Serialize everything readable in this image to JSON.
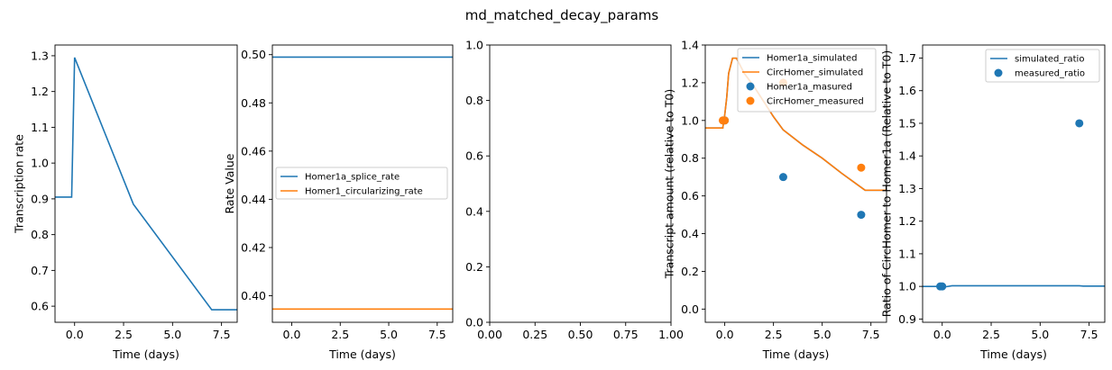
{
  "figure": {
    "title": "md_matched_decay_params"
  },
  "colors": {
    "blue": "#1f77b4",
    "orange": "#ff7f0e",
    "axis": "#000000",
    "legend_border": "#cccccc"
  },
  "chart_data": [
    {
      "type": "line",
      "xlabel": "Time (days)",
      "ylabel": "Transcription rate",
      "xlim": [
        -1.0,
        8.3
      ],
      "ylim": [
        0.555,
        1.33
      ],
      "xticks": [
        0.0,
        2.5,
        5.0,
        7.5
      ],
      "xtick_labels": [
        "0.0",
        "2.5",
        "5.0",
        "7.5"
      ],
      "yticks": [
        0.6,
        0.7,
        0.8,
        0.9,
        1.0,
        1.1,
        1.2,
        1.3
      ],
      "ytick_labels": [
        "0.6",
        "0.7",
        "0.8",
        "0.9",
        "1.0",
        "1.1",
        "1.2",
        "1.3"
      ],
      "legend": null,
      "series": [
        {
          "color": "#1f77b4",
          "kind": "line",
          "x": [
            -1.0,
            -0.15,
            -0.15,
            0.0,
            3.0,
            7.0,
            8.3
          ],
          "y": [
            0.905,
            0.905,
            0.905,
            1.295,
            0.885,
            0.59,
            0.59
          ]
        }
      ]
    },
    {
      "type": "line",
      "xlabel": "Time (days)",
      "ylabel": "Rate Value",
      "xlim": [
        -1.0,
        8.3
      ],
      "ylim": [
        0.389,
        0.504
      ],
      "xticks": [
        0.0,
        2.5,
        5.0,
        7.5
      ],
      "xtick_labels": [
        "0.0",
        "2.5",
        "5.0",
        "7.5"
      ],
      "yticks": [
        0.4,
        0.42,
        0.44,
        0.46,
        0.48,
        0.5
      ],
      "ytick_labels": [
        "0.40",
        "0.42",
        "0.44",
        "0.46",
        "0.48",
        "0.50"
      ],
      "legend": "center",
      "series": [
        {
          "name": "Homer1a_splice_rate",
          "color": "#1f77b4",
          "kind": "line",
          "x": [
            -1.0,
            8.3
          ],
          "y": [
            0.499,
            0.499
          ]
        },
        {
          "name": "Homer1_circularizing_rate",
          "color": "#ff7f0e",
          "kind": "line",
          "x": [
            -1.0,
            8.3
          ],
          "y": [
            0.3945,
            0.3945
          ]
        }
      ]
    },
    {
      "type": "line",
      "xlabel": "",
      "ylabel": "",
      "xlim": [
        0.0,
        1.0
      ],
      "ylim": [
        0.0,
        1.0
      ],
      "xticks": [
        0.0,
        0.25,
        0.5,
        0.75,
        1.0
      ],
      "xtick_labels": [
        "0.00",
        "0.25",
        "0.50",
        "0.75",
        "1.00"
      ],
      "yticks": [
        0.0,
        0.2,
        0.4,
        0.6,
        0.8,
        1.0
      ],
      "ytick_labels": [
        "0.0",
        "0.2",
        "0.4",
        "0.6",
        "0.8",
        "1.0"
      ],
      "legend": null,
      "series": []
    },
    {
      "type": "line",
      "xlabel": "Time (days)",
      "ylabel": "Transcript amount (relative to T0)",
      "xlim": [
        -1.0,
        8.3
      ],
      "ylim": [
        -0.07,
        1.4
      ],
      "xticks": [
        0.0,
        2.5,
        5.0,
        7.5
      ],
      "xtick_labels": [
        "0.0",
        "2.5",
        "5.0",
        "7.5"
      ],
      "yticks": [
        0.0,
        0.2,
        0.4,
        0.6,
        0.8,
        1.0,
        1.2,
        1.4
      ],
      "ytick_labels": [
        "0.0",
        "0.2",
        "0.4",
        "0.6",
        "0.8",
        "1.0",
        "1.2",
        "1.4"
      ],
      "legend": "top-right",
      "series": [
        {
          "name": "Homer1a_simulated",
          "color": "#1f77b4",
          "kind": "line",
          "x": [
            -1.0,
            -0.1,
            -0.05,
            0.0,
            0.1,
            0.2,
            0.4,
            0.6,
            0.8,
            1.0,
            1.5,
            2.0,
            2.5,
            3.0,
            4.0,
            5.0,
            6.0,
            7.0,
            7.2,
            8.3
          ],
          "y": [
            0.96,
            0.96,
            1.0,
            1.03,
            1.12,
            1.25,
            1.33,
            1.33,
            1.29,
            1.25,
            1.18,
            1.1,
            1.02,
            0.95,
            0.87,
            0.8,
            0.72,
            0.645,
            0.63,
            0.63
          ]
        },
        {
          "name": "CircHomer_simulated",
          "color": "#ff7f0e",
          "kind": "line",
          "x": [
            -1.0,
            -0.1,
            -0.05,
            0.0,
            0.1,
            0.2,
            0.4,
            0.6,
            0.8,
            1.0,
            1.5,
            2.0,
            2.5,
            3.0,
            4.0,
            5.0,
            6.0,
            7.0,
            7.2,
            8.3
          ],
          "y": [
            0.96,
            0.96,
            1.0,
            1.03,
            1.12,
            1.25,
            1.33,
            1.33,
            1.29,
            1.25,
            1.18,
            1.1,
            1.02,
            0.95,
            0.87,
            0.8,
            0.72,
            0.645,
            0.63,
            0.63
          ]
        },
        {
          "name": "Homer1a_masured",
          "color": "#1f77b4",
          "kind": "scatter",
          "x": [
            0.0,
            3.0,
            7.0
          ],
          "y": [
            1.0,
            0.7,
            0.5
          ]
        },
        {
          "name": "CircHomer_measured",
          "color": "#ff7f0e",
          "kind": "scatter",
          "x": [
            -0.1,
            0.0,
            3.0,
            7.0
          ],
          "y": [
            1.0,
            1.0,
            1.2,
            0.75
          ]
        }
      ]
    },
    {
      "type": "line",
      "xlabel": "Time (days)",
      "ylabel": "Ratio of CircHomer to Homer1a (Relative to T0)",
      "xlim": [
        -1.0,
        8.3
      ],
      "ylim": [
        0.89,
        1.74
      ],
      "xticks": [
        0.0,
        2.5,
        5.0,
        7.5
      ],
      "xtick_labels": [
        "0.0",
        "2.5",
        "5.0",
        "7.5"
      ],
      "yticks": [
        0.9,
        1.0,
        1.1,
        1.2,
        1.3,
        1.4,
        1.5,
        1.6,
        1.7
      ],
      "ytick_labels": [
        "0.9",
        "1.0",
        "1.1",
        "1.2",
        "1.3",
        "1.4",
        "1.5",
        "1.6",
        "1.7"
      ],
      "legend": "top-right",
      "series": [
        {
          "name": "simulated_ratio",
          "color": "#1f77b4",
          "kind": "line",
          "x": [
            -1.0,
            -0.1,
            0.0,
            0.2,
            0.5,
            1.0,
            7.0,
            7.2,
            8.3
          ],
          "y": [
            1.0,
            1.0,
            0.997,
            0.999,
            1.002,
            1.002,
            1.002,
            1.001,
            1.001
          ]
        },
        {
          "name": "measured_ratio",
          "color": "#1f77b4",
          "kind": "scatter",
          "x": [
            -0.1,
            0.0,
            7.0
          ],
          "y": [
            1.0,
            1.0,
            1.5
          ]
        }
      ]
    }
  ]
}
